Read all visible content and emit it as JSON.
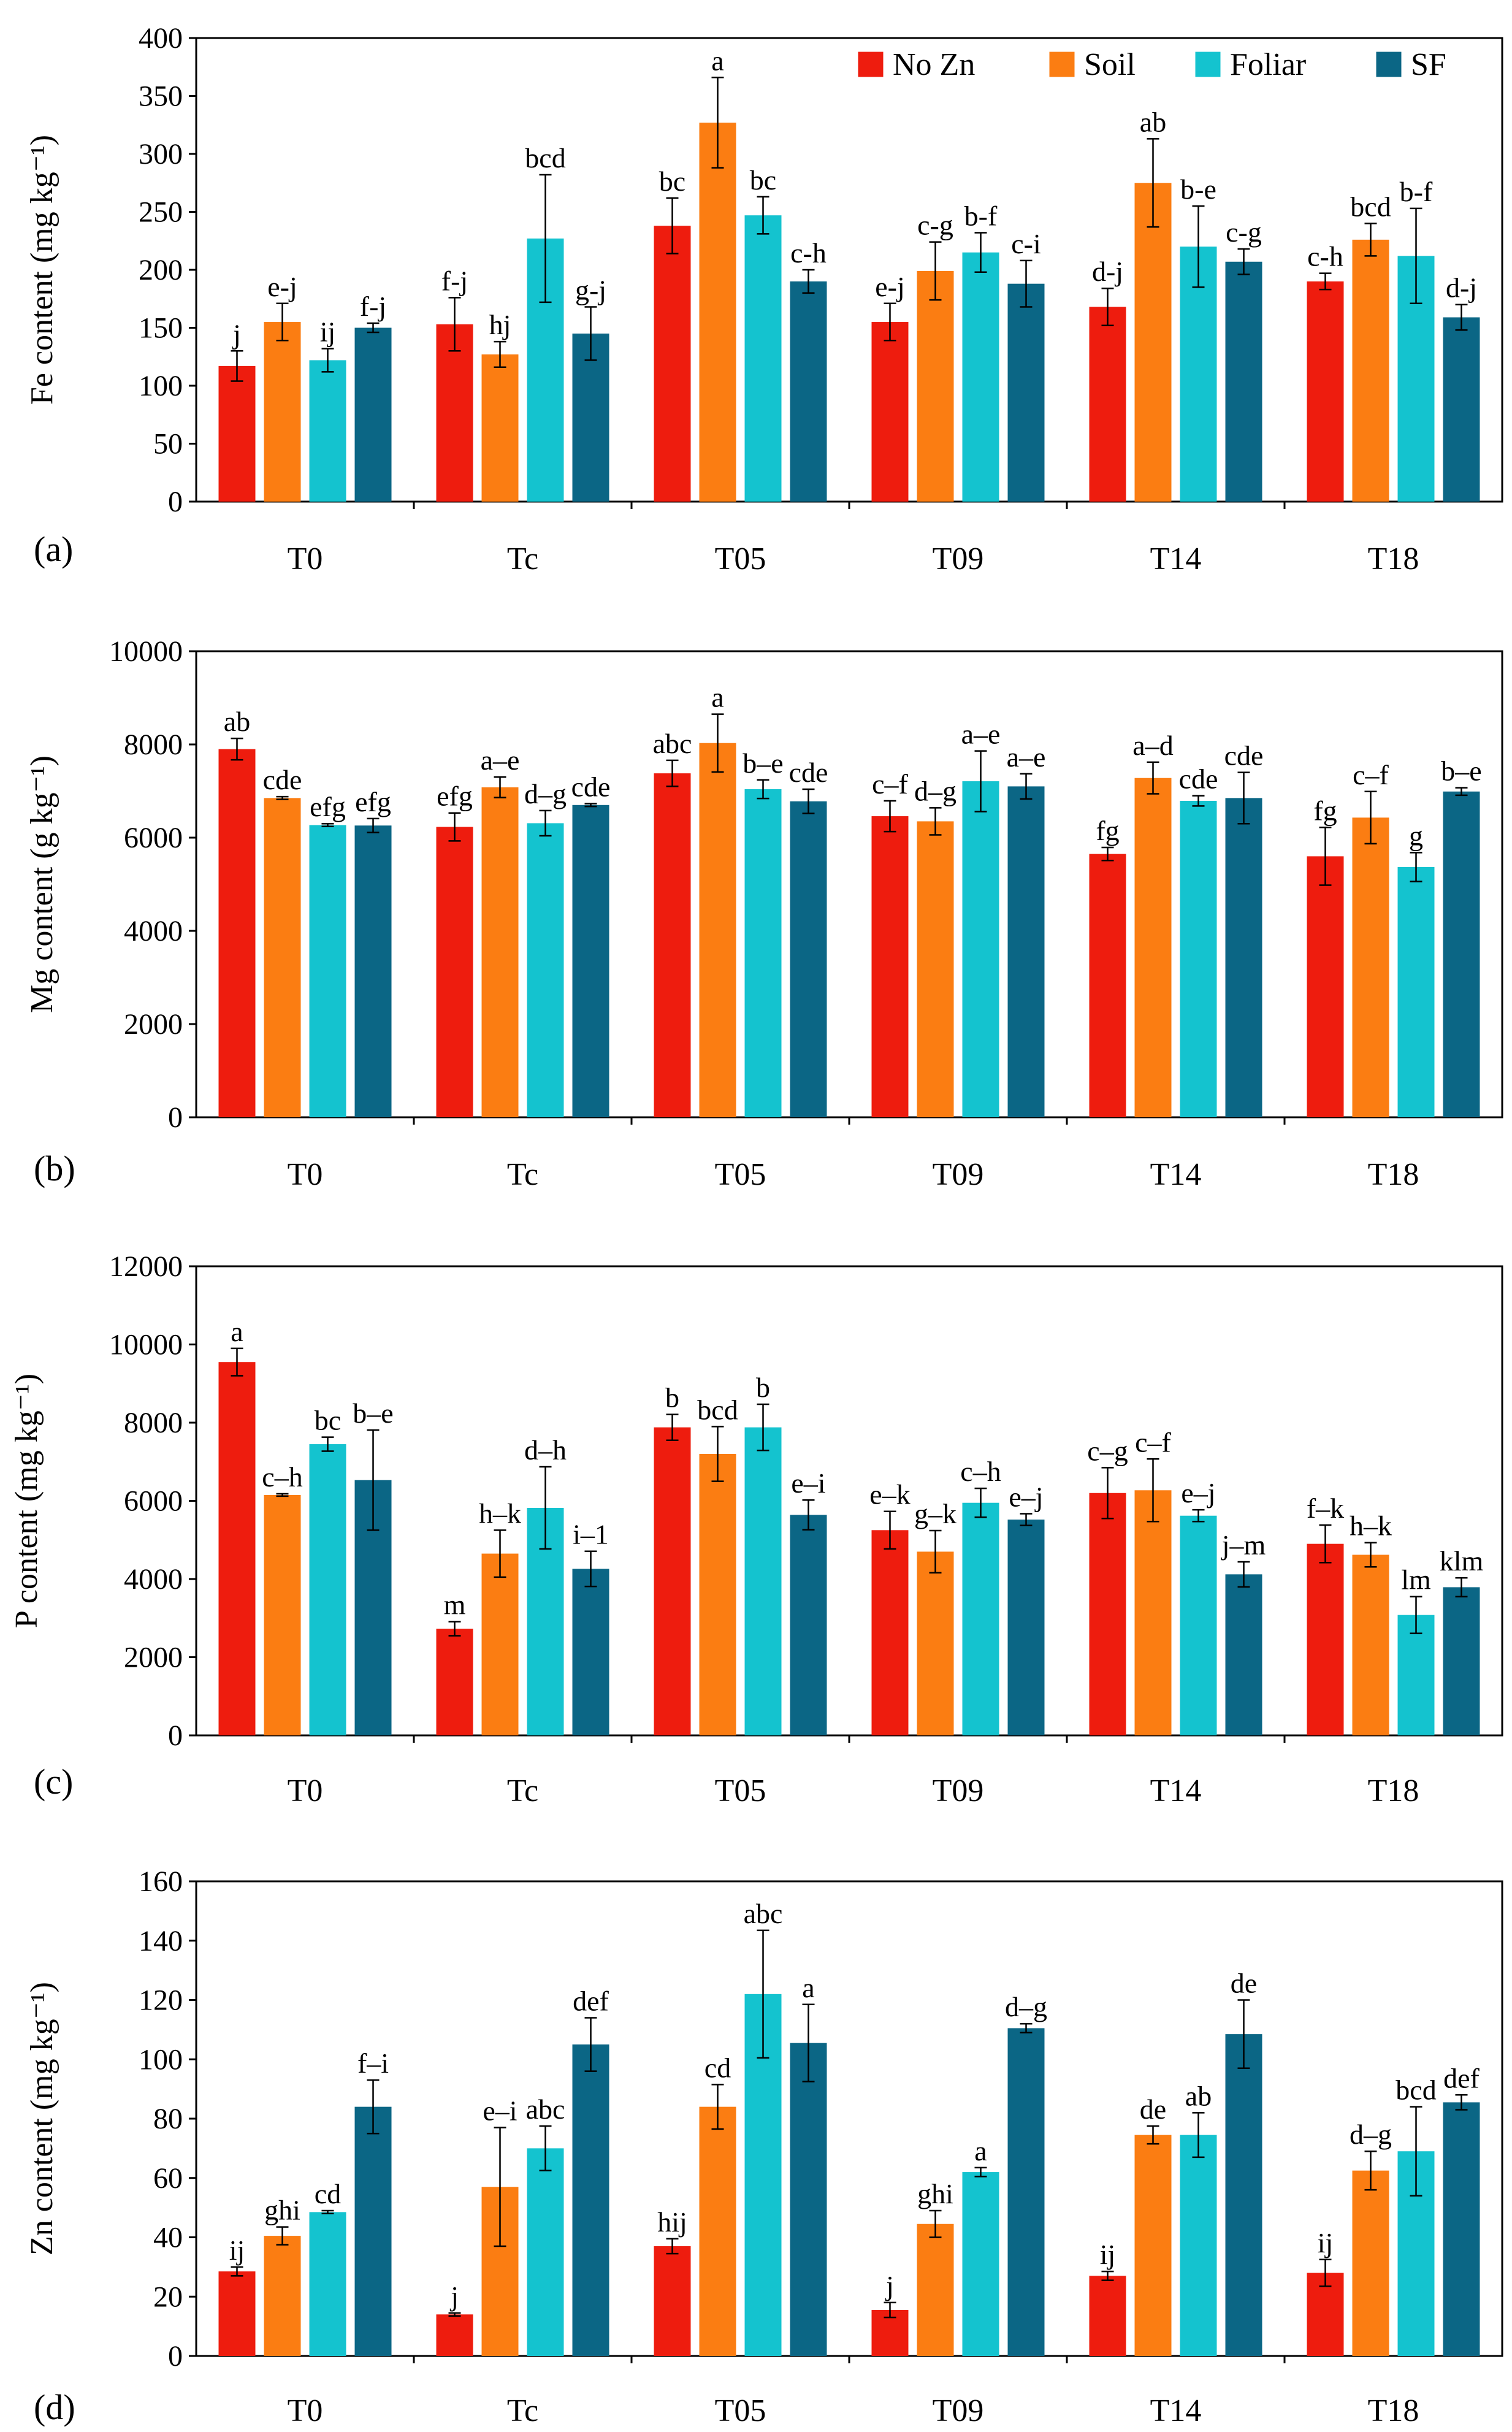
{
  "legend": [
    {
      "name": "No Zn",
      "color": "#ee1c0e"
    },
    {
      "name": "Soil",
      "color": "#fb7d12"
    },
    {
      "name": "Foliar",
      "color": "#14c3cf"
    },
    {
      "name": "SF",
      "color": "#0b6685"
    }
  ],
  "chart_data": [
    {
      "type": "bar",
      "panel": "(a)",
      "ylabel": "Fe content (mg kg⁻¹)",
      "ylim": [
        0,
        400
      ],
      "yticks": [
        0,
        50,
        100,
        150,
        200,
        250,
        300,
        350,
        400
      ],
      "categories": [
        "T0",
        "Tc",
        "T05",
        "T09",
        "T14",
        "T18"
      ],
      "series": [
        {
          "name": "No Zn",
          "values": [
            117,
            153,
            238,
            155,
            168,
            190
          ],
          "errors": [
            13,
            23,
            24,
            16,
            16,
            7
          ],
          "labels": [
            "j",
            "f-j",
            "bc",
            "e-j",
            "d-j",
            "c-h"
          ]
        },
        {
          "name": "Soil",
          "values": [
            155,
            127,
            327,
            199,
            275,
            226
          ],
          "errors": [
            16,
            11,
            39,
            25,
            38,
            14
          ],
          "labels": [
            "e-j",
            "hj",
            "a",
            "c-g",
            "ab",
            "bcd"
          ]
        },
        {
          "name": "Foliar",
          "values": [
            122,
            227,
            247,
            215,
            220,
            212
          ],
          "errors": [
            10,
            55,
            16,
            17,
            35,
            41
          ],
          "labels": [
            "ij",
            "bcd",
            "bc",
            "b-f",
            "b-e",
            "b-f"
          ]
        },
        {
          "name": "SF",
          "values": [
            150,
            145,
            190,
            188,
            207,
            159
          ],
          "errors": [
            4,
            23,
            10,
            20,
            11,
            11
          ],
          "labels": [
            "f-j",
            "g-j",
            "c-h",
            "c-i",
            "c-g",
            "d-j"
          ]
        }
      ]
    },
    {
      "type": "bar",
      "panel": "(b)",
      "ylabel": "Mg content (g kg⁻¹)",
      "ylim": [
        0,
        10000
      ],
      "yticks": [
        0,
        2000,
        4000,
        6000,
        8000,
        10000
      ],
      "categories": [
        "T0",
        "Tc",
        "T05",
        "T09",
        "T14",
        "T18"
      ],
      "series": [
        {
          "name": "No Zn",
          "values": [
            7900,
            6230,
            7380,
            6460,
            5650,
            5600
          ],
          "errors": [
            230,
            300,
            280,
            330,
            140,
            620
          ],
          "labels": [
            "ab",
            "efg",
            "abc",
            "c–f",
            "fg",
            "fg"
          ]
        },
        {
          "name": "Soil",
          "values": [
            6850,
            7080,
            8030,
            6350,
            7280,
            6430
          ],
          "errors": [
            30,
            220,
            620,
            290,
            340,
            560
          ],
          "labels": [
            "cde",
            "a–e",
            "a",
            "d–g",
            "a–d",
            "c–f"
          ]
        },
        {
          "name": "Foliar",
          "values": [
            6270,
            6310,
            7040,
            7210,
            6790,
            5370
          ],
          "errors": [
            30,
            270,
            200,
            650,
            110,
            310
          ],
          "labels": [
            "efg",
            "d–g",
            "b–e",
            "a–e",
            "cde",
            "g"
          ]
        },
        {
          "name": "SF",
          "values": [
            6260,
            6700,
            6780,
            7100,
            6850,
            6990
          ],
          "errors": [
            150,
            30,
            260,
            270,
            550,
            80
          ],
          "labels": [
            "efg",
            "cde",
            "cde",
            "a–e",
            "cde",
            "b–e"
          ]
        }
      ]
    },
    {
      "type": "bar",
      "panel": "(c)",
      "ylabel": "P content (mg kg⁻¹)",
      "ylim": [
        0,
        12000
      ],
      "yticks": [
        0,
        2000,
        4000,
        6000,
        8000,
        10000,
        12000
      ],
      "categories": [
        "T0",
        "Tc",
        "T05",
        "T09",
        "T14",
        "T18"
      ],
      "series": [
        {
          "name": "No Zn",
          "values": [
            9550,
            2730,
            7880,
            5250,
            6200,
            4900
          ],
          "errors": [
            350,
            180,
            330,
            480,
            650,
            480
          ],
          "labels": [
            "a",
            "m",
            "b",
            "e–k",
            "c–g",
            "f–k"
          ]
        },
        {
          "name": "Soil",
          "values": [
            6150,
            4650,
            7200,
            4700,
            6270,
            4620
          ],
          "errors": [
            30,
            600,
            700,
            540,
            800,
            310
          ],
          "labels": [
            "c–h",
            "h–k",
            "bcd",
            "g–k",
            "c–f",
            "h–k"
          ]
        },
        {
          "name": "Foliar",
          "values": [
            7450,
            5820,
            7880,
            5950,
            5620,
            3080
          ],
          "errors": [
            180,
            1050,
            590,
            370,
            150,
            470
          ],
          "labels": [
            "bc",
            "d–h",
            "b",
            "c–h",
            "e–j",
            "lm"
          ]
        },
        {
          "name": "SF",
          "values": [
            6530,
            4260,
            5640,
            5520,
            4120,
            3790
          ],
          "errors": [
            1280,
            450,
            380,
            150,
            320,
            240
          ],
          "labels": [
            "b–e",
            "i–1",
            "e–i",
            "e–j",
            "j–m",
            "klm"
          ]
        }
      ]
    },
    {
      "type": "bar",
      "panel": "(d)",
      "ylabel": "Zn content (mg kg⁻¹)",
      "ylim": [
        0,
        160
      ],
      "yticks": [
        0,
        20,
        40,
        60,
        80,
        100,
        120,
        140,
        160
      ],
      "categories": [
        "T0",
        "Tc",
        "T05",
        "T09",
        "T14",
        "T18"
      ],
      "series": [
        {
          "name": "No Zn",
          "values": [
            28.5,
            14,
            37,
            15.5,
            27,
            28
          ],
          "errors": [
            1.5,
            0.5,
            2.5,
            2.5,
            1.5,
            4.5
          ],
          "labels": [
            "ij",
            "j",
            "hij",
            "j",
            "ij",
            "ij"
          ]
        },
        {
          "name": "Soil",
          "values": [
            40.5,
            57,
            84,
            44.5,
            74.5,
            62.5
          ],
          "errors": [
            3,
            20,
            7.5,
            4.5,
            3,
            6.5
          ],
          "labels": [
            "ghi",
            "e–i",
            "cd",
            "ghi",
            "de",
            "d–g"
          ]
        },
        {
          "name": "Foliar",
          "values": [
            48.5,
            70,
            122,
            62,
            74.5,
            69
          ],
          "errors": [
            0.5,
            7.5,
            21.5,
            1.5,
            7.5,
            15
          ],
          "labels": [
            "cd",
            "abc",
            "abc",
            "a",
            "ab",
            "bcd"
          ]
        },
        {
          "name": "SF",
          "values": [
            84,
            105,
            105.5,
            110.5,
            108.5,
            85.5
          ],
          "errors": [
            9,
            9,
            13,
            1.5,
            11.5,
            2.5
          ],
          "labels": [
            "f–i",
            "def",
            "a",
            "d–g",
            "de",
            "def"
          ]
        }
      ]
    }
  ]
}
